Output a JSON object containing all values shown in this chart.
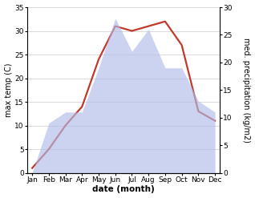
{
  "months": [
    "Jan",
    "Feb",
    "Mar",
    "Apr",
    "May",
    "Jun",
    "Jul",
    "Aug",
    "Sep",
    "Oct",
    "Nov",
    "Dec"
  ],
  "x": [
    0,
    1,
    2,
    3,
    4,
    5,
    6,
    7,
    8,
    9,
    10,
    11
  ],
  "temperature": [
    1,
    5,
    10,
    14,
    24,
    31,
    30,
    31,
    32,
    27,
    13,
    11
  ],
  "precipitation": [
    0,
    9,
    11,
    11,
    19,
    28,
    22,
    26,
    19,
    19,
    13,
    11
  ],
  "temp_color": "#c0392b",
  "precip_fill_color": "#b0bce8",
  "precip_fill_alpha": 0.65,
  "temp_ylim": [
    0,
    35
  ],
  "precip_ylim": [
    0,
    30
  ],
  "temp_yticks": [
    0,
    5,
    10,
    15,
    20,
    25,
    30,
    35
  ],
  "precip_yticks": [
    0,
    5,
    10,
    15,
    20,
    25,
    30
  ],
  "ylabel_left": "max temp (C)",
  "ylabel_right": "med. precipitation (kg/m2)",
  "xlabel": "date (month)",
  "bg_color": "#ffffff",
  "line_width": 1.6,
  "tick_labelsize": 6.5,
  "xlabel_fontsize": 7.5,
  "ylabel_fontsize": 7
}
